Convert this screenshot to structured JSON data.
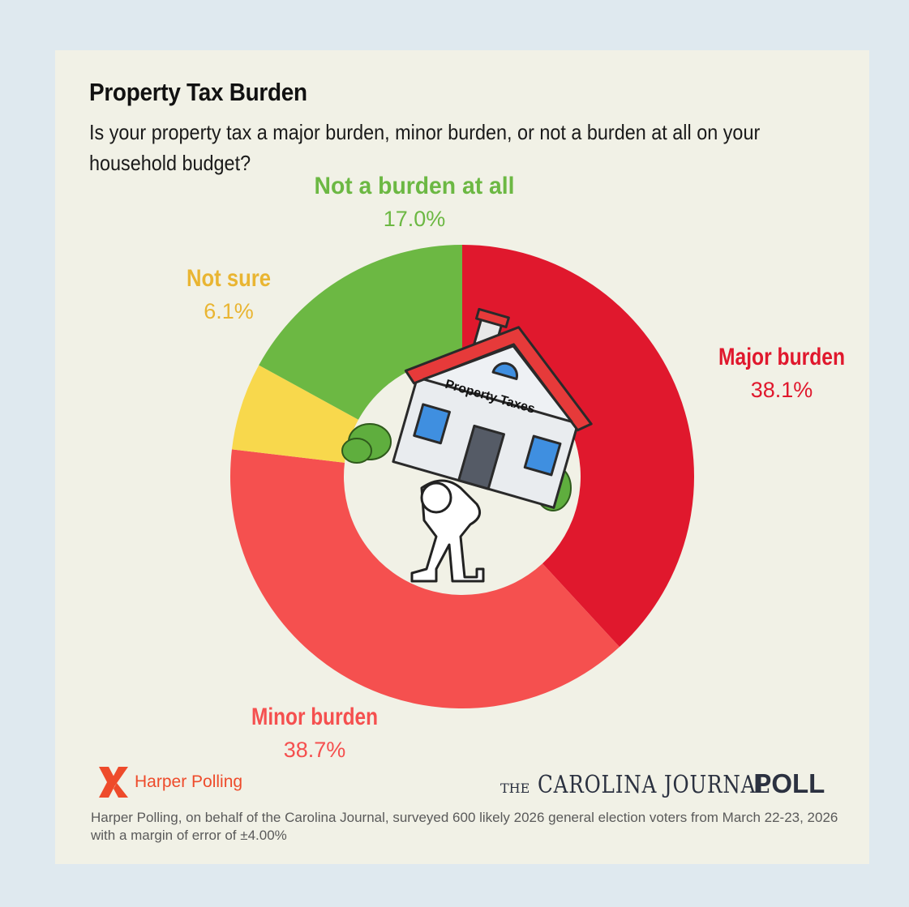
{
  "title": "Property Tax Burden",
  "question": "Is your property tax a major burden, minor burden, or not a burden at all on your household budget?",
  "illustration": {
    "house_sign": "Property Taxes",
    "icon": "person-carrying-house-illustration"
  },
  "chart_data": {
    "type": "pie",
    "style": "donut",
    "title": "Property Tax Burden",
    "slices": [
      {
        "label": "Major burden",
        "value": 38.1,
        "value_label": "38.1%",
        "color": "#e0182d"
      },
      {
        "label": "Minor burden",
        "value": 38.7,
        "value_label": "38.7%",
        "color": "#f5504f"
      },
      {
        "label": "Not sure",
        "value": 6.1,
        "value_label": "6.1%",
        "color": "#f8d84c",
        "label_color": "#e9b532"
      },
      {
        "label": "Not a burden at all",
        "value": 17.0,
        "value_label": "17.0%",
        "color": "#6cb843",
        "label_color": "#6cb843"
      }
    ]
  },
  "branding": {
    "pollster": "Harper Polling",
    "pollster_color": "#ee4b2b",
    "publication_the": "THE",
    "publication_name": "CAROLINA JOURNAL",
    "publication_poll": "POLL"
  },
  "footnote": "Harper Polling, on behalf of the Carolina Journal, surveyed 600 likely 2026 general election voters from March 22-23, 2026 with a margin of error of ±4.00%"
}
